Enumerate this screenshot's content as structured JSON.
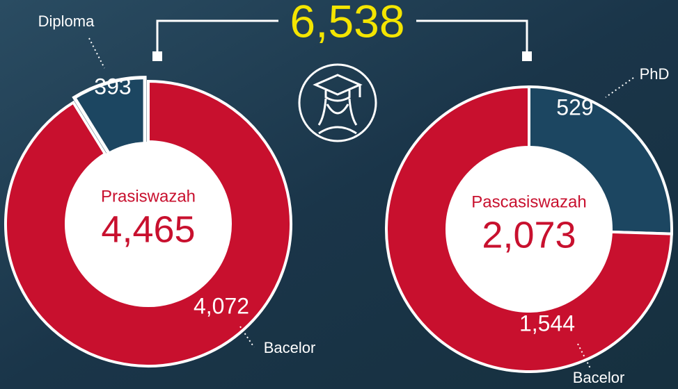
{
  "total": {
    "value": 6538,
    "label": "6,538"
  },
  "chart_data": [
    {
      "type": "donut",
      "title": "Prasiswazah",
      "total": {
        "value": 4465,
        "label": "4,465"
      },
      "categories": [
        "Diploma",
        "Bacelor"
      ],
      "values": [
        393,
        4072
      ],
      "value_labels": [
        "393",
        "4,072"
      ],
      "colors": [
        "#1c4661",
        "#c8102e"
      ],
      "exploded": [
        true,
        false
      ]
    },
    {
      "type": "donut",
      "title": "Pascasiswazah",
      "total": {
        "value": 2073,
        "label": "2,073"
      },
      "categories": [
        "PhD",
        "Bacelor"
      ],
      "values": [
        529,
        1544
      ],
      "value_labels": [
        "529",
        "1,544"
      ],
      "colors": [
        "#1c4661",
        "#c8102e"
      ],
      "exploded": [
        false,
        false
      ]
    }
  ]
}
